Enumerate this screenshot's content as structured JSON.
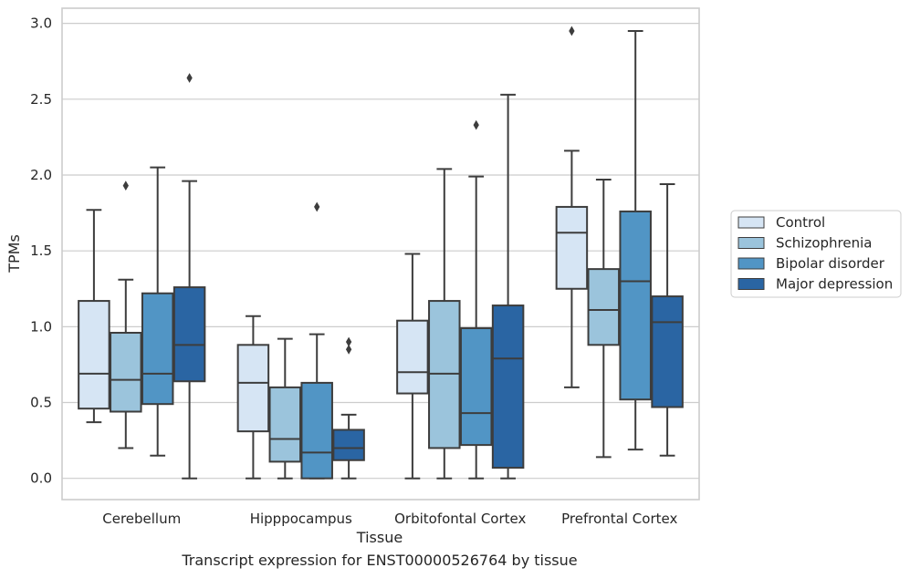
{
  "chart_data": {
    "type": "box",
    "title": "",
    "caption": "Transcript expression for ENST00000526764 by tissue",
    "xlabel": "Tissue",
    "ylabel": "TPMs",
    "ylim": [
      -0.14,
      3.1
    ],
    "yticks": [
      "0.0",
      "0.5",
      "1.0",
      "1.5",
      "2.0",
      "2.5",
      "3.0"
    ],
    "grid": "horizontal",
    "legend_position": "right",
    "categories": [
      "Cerebellum",
      "Hipppocampus",
      "Orbitofontal Cortex",
      "Prefrontal Cortex"
    ],
    "series": [
      {
        "name": "Control",
        "color": "#d6e5f4",
        "boxes": [
          {
            "whislo": 0.37,
            "q1": 0.46,
            "med": 0.69,
            "q3": 1.17,
            "whishi": 1.77,
            "fliers": []
          },
          {
            "whislo": 0.0,
            "q1": 0.31,
            "med": 0.63,
            "q3": 0.88,
            "whishi": 1.07,
            "fliers": []
          },
          {
            "whislo": 0.0,
            "q1": 0.56,
            "med": 0.7,
            "q3": 1.04,
            "whishi": 1.48,
            "fliers": []
          },
          {
            "whislo": 0.6,
            "q1": 1.25,
            "med": 1.62,
            "q3": 1.79,
            "whishi": 2.16,
            "fliers": [
              2.95
            ]
          }
        ]
      },
      {
        "name": "Schizophrenia",
        "color": "#9bc4dc",
        "boxes": [
          {
            "whislo": 0.2,
            "q1": 0.44,
            "med": 0.65,
            "q3": 0.96,
            "whishi": 1.31,
            "fliers": [
              1.93
            ]
          },
          {
            "whislo": 0.0,
            "q1": 0.11,
            "med": 0.26,
            "q3": 0.6,
            "whishi": 0.92,
            "fliers": []
          },
          {
            "whislo": 0.0,
            "q1": 0.2,
            "med": 0.69,
            "q3": 1.17,
            "whishi": 2.04,
            "fliers": []
          },
          {
            "whislo": 0.14,
            "q1": 0.88,
            "med": 1.11,
            "q3": 1.38,
            "whishi": 1.97,
            "fliers": []
          }
        ]
      },
      {
        "name": "Bipolar disorder",
        "color": "#5195c5",
        "boxes": [
          {
            "whislo": 0.15,
            "q1": 0.49,
            "med": 0.69,
            "q3": 1.22,
            "whishi": 2.05,
            "fliers": []
          },
          {
            "whislo": 0.0,
            "q1": 0.0,
            "med": 0.17,
            "q3": 0.63,
            "whishi": 0.95,
            "fliers": [
              1.79
            ]
          },
          {
            "whislo": 0.0,
            "q1": 0.22,
            "med": 0.43,
            "q3": 0.99,
            "whishi": 1.99,
            "fliers": [
              2.33
            ]
          },
          {
            "whislo": 0.19,
            "q1": 0.52,
            "med": 1.3,
            "q3": 1.76,
            "whishi": 2.95,
            "fliers": []
          }
        ]
      },
      {
        "name": "Major depression",
        "color": "#2a65a3",
        "boxes": [
          {
            "whislo": 0.0,
            "q1": 0.64,
            "med": 0.88,
            "q3": 1.26,
            "whishi": 1.96,
            "fliers": [
              2.64
            ]
          },
          {
            "whislo": 0.0,
            "q1": 0.12,
            "med": 0.2,
            "q3": 0.32,
            "whishi": 0.42,
            "fliers": [
              0.85,
              0.9
            ]
          },
          {
            "whislo": 0.0,
            "q1": 0.07,
            "med": 0.79,
            "q3": 1.14,
            "whishi": 2.53,
            "fliers": []
          },
          {
            "whislo": 0.15,
            "q1": 0.47,
            "med": 1.03,
            "q3": 1.2,
            "whishi": 1.94,
            "fliers": []
          }
        ]
      }
    ]
  }
}
